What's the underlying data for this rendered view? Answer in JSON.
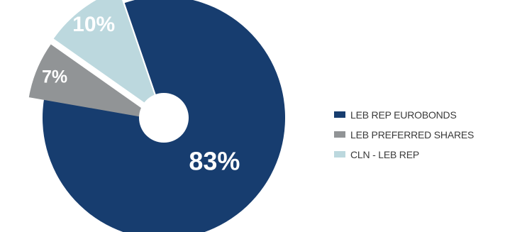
{
  "chart_data": {
    "type": "pie",
    "categories": [
      "LEB REP EUROBONDS",
      "LEB PREFERRED SHARES",
      "CLN - LEB REP"
    ],
    "values": [
      83,
      7,
      10
    ],
    "data_labels": [
      "83%",
      "7%",
      "10%"
    ],
    "colors": [
      "#173d6f",
      "#919496",
      "#bcd8de"
    ],
    "legend": "right",
    "donut_hole": true,
    "exploded": [
      "LEB PREFERRED SHARES",
      "CLN - LEB REP"
    ]
  }
}
